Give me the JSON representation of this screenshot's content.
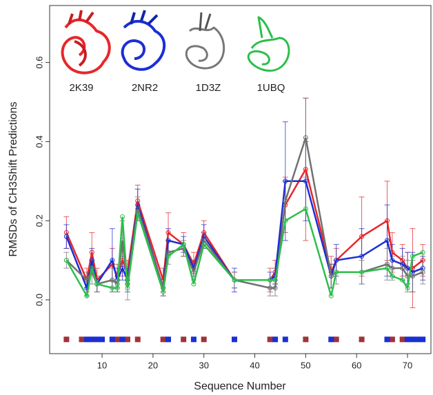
{
  "chart_data": {
    "type": "line",
    "x_label": "Sequence Number",
    "y_label": "RMSDs of CH3Shift Predictions",
    "xlim": [
      -0.3,
      74.6
    ],
    "ylim": [
      -0.136,
      0.744
    ],
    "xticks": [
      10,
      20,
      30,
      40,
      50,
      60,
      70
    ],
    "yticks": [
      {
        "value": 0,
        "label": "0.0"
      },
      0.2,
      0.4,
      0.6
    ],
    "x": [
      3,
      7,
      8,
      9,
      12,
      13,
      14,
      15,
      17,
      22,
      23,
      26,
      28,
      30,
      36,
      43,
      44,
      46,
      50,
      55,
      56,
      61,
      66,
      67,
      69,
      70,
      71,
      73
    ],
    "series": [
      {
        "name": "2K39",
        "color": "#e8262a",
        "values": [
          0.17,
          0.05,
          0.12,
          0.05,
          0.09,
          0.06,
          0.1,
          0.07,
          0.25,
          0.05,
          0.17,
          0.14,
          0.09,
          0.17,
          0.05,
          0.05,
          0.07,
          0.24,
          0.33,
          0.07,
          0.1,
          0.16,
          0.2,
          0.12,
          0.1,
          0.08,
          0.08,
          0.1
        ],
        "errors": [
          0.04,
          0.03,
          0.05,
          0.03,
          0.04,
          0.03,
          0.04,
          0.03,
          0.04,
          0.03,
          0.05,
          0.03,
          0.03,
          0.03,
          0.02,
          0.03,
          0.03,
          0.07,
          0.18,
          0.04,
          0.03,
          0.1,
          0.1,
          0.05,
          0.04,
          0.04,
          0.1,
          0.04
        ]
      },
      {
        "name": "2NR2",
        "color": "#1a2fd4",
        "values": [
          0.16,
          0.03,
          0.1,
          0.04,
          0.1,
          0.05,
          0.08,
          0.05,
          0.24,
          0.03,
          0.15,
          0.14,
          0.08,
          0.16,
          0.05,
          0.05,
          0.06,
          0.3,
          0.3,
          0.06,
          0.1,
          0.11,
          0.15,
          0.1,
          0.09,
          0.08,
          0.07,
          0.08
        ],
        "errors": [
          0.03,
          0.02,
          0.03,
          0.02,
          0.08,
          0.03,
          0.03,
          0.03,
          0.04,
          0.02,
          0.03,
          0.02,
          0.02,
          0.03,
          0.03,
          0.02,
          0.02,
          0.15,
          0.1,
          0.03,
          0.04,
          0.07,
          0.09,
          0.04,
          0.04,
          0.04,
          0.05,
          0.03
        ]
      },
      {
        "name": "1D3Z",
        "color": "#707070",
        "values": [
          0.1,
          0.05,
          0.07,
          0.04,
          0.05,
          0.04,
          0.15,
          0.04,
          0.23,
          0.03,
          0.12,
          0.13,
          0.07,
          0.15,
          0.05,
          0.03,
          0.03,
          0.25,
          0.41,
          0.06,
          0.07,
          0.07,
          0.09,
          0.08,
          0.08,
          0.06,
          0.06,
          0.07
        ],
        "errors": [
          0.02,
          0.02,
          0.03,
          0.02,
          0.03,
          0.02,
          0.05,
          0.04,
          0.03,
          0.02,
          0.03,
          0.02,
          0.02,
          0.02,
          0.02,
          0.02,
          0.02,
          0.05,
          0.1,
          0.03,
          0.03,
          0.03,
          0.04,
          0.03,
          0.03,
          0.04,
          0.04,
          0.03
        ]
      },
      {
        "name": "1UBQ",
        "color": "#2bbf4a",
        "values": [
          0.1,
          0.01,
          0.08,
          0.04,
          0.03,
          0.03,
          0.21,
          0.03,
          0.22,
          0.02,
          0.11,
          0.14,
          0.04,
          0.14,
          0.05,
          0.05,
          0.05,
          0.2,
          0.23,
          0.01,
          0.07,
          0.07,
          0.08,
          0.06,
          0.05,
          0.03,
          0.11,
          0.12
        ]
      }
    ],
    "marker_y": -0.1,
    "marker_groups": [
      {
        "color": "#a0333a",
        "x": [
          3,
          6,
          13,
          15,
          17,
          22,
          26,
          30,
          43,
          50,
          56,
          61,
          67,
          69
        ]
      },
      {
        "color": "#1a2fd4",
        "x": [
          7,
          8,
          9,
          10,
          12,
          14,
          23,
          28,
          36,
          44,
          46,
          55,
          66,
          70,
          71,
          72,
          73
        ]
      }
    ]
  }
}
